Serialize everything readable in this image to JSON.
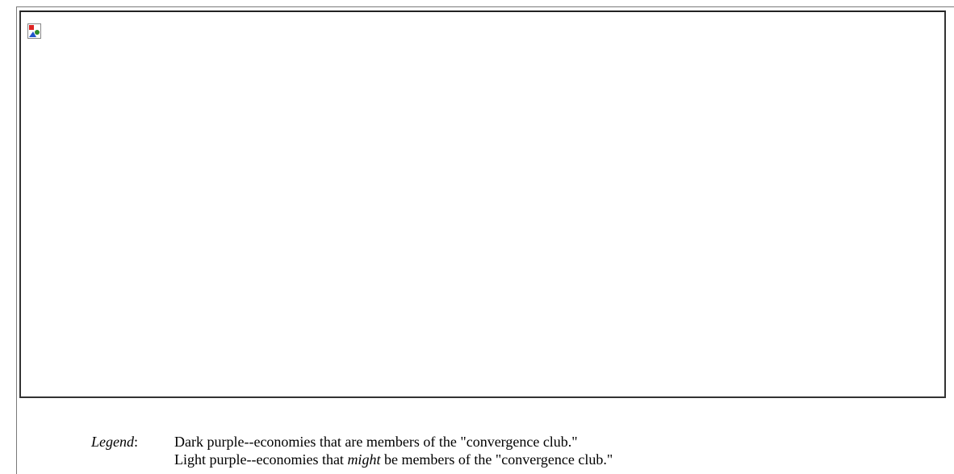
{
  "legend": {
    "label": "Legend",
    "separator": ":",
    "lines": [
      "Dark purple--economies that are members of the \"convergence club.\"",
      {
        "before": "Light purple--economies that ",
        "emphasis": "might",
        "after": " be members of the \"convergence club.\""
      }
    ]
  }
}
